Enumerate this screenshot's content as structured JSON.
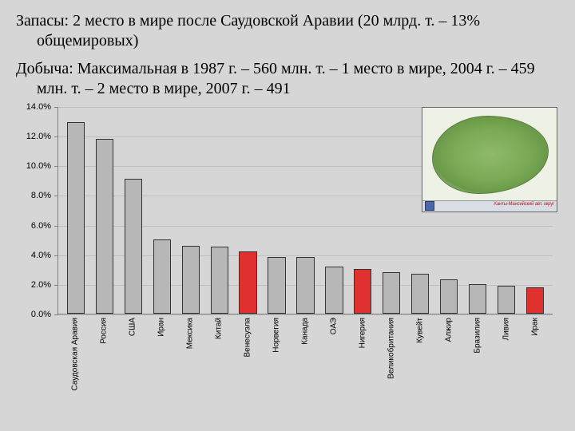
{
  "text": {
    "para1": "Запасы: 2 место в мире после Саудовской Аравии (20 млрд. т. – 13% общемировых)",
    "para2": "Добыча: Максимальная в 1987 г. – 560 млн. т. – 1 место в мире, 2004 г. – 459 млн. т. – 2 место в мире, 2007 г. – 491"
  },
  "chart": {
    "type": "bar",
    "ylim": [
      0,
      14
    ],
    "ytick_step": 2,
    "y_format_suffix": ".0%",
    "label_fontsize": 11,
    "xlabel_fontsize": 10,
    "grid_color": "#bfbfbf",
    "axis_color": "#808080",
    "bar_border": "#333333",
    "colors": {
      "gray": "#b7b7b7",
      "red": "#e03030"
    },
    "categories": [
      {
        "label": "Саудовская Аравия",
        "value": 12.9,
        "color": "gray"
      },
      {
        "label": "Россия",
        "value": 11.8,
        "color": "gray"
      },
      {
        "label": "США",
        "value": 9.1,
        "color": "gray"
      },
      {
        "label": "Иран",
        "value": 5.0,
        "color": "gray"
      },
      {
        "label": "Мексика",
        "value": 4.6,
        "color": "gray"
      },
      {
        "label": "Китай",
        "value": 4.5,
        "color": "gray"
      },
      {
        "label": "Венесуэла",
        "value": 4.2,
        "color": "red"
      },
      {
        "label": "Норвегия",
        "value": 3.8,
        "color": "gray"
      },
      {
        "label": "Канада",
        "value": 3.8,
        "color": "gray"
      },
      {
        "label": "ОАЭ",
        "value": 3.2,
        "color": "gray"
      },
      {
        "label": "Нигерия",
        "value": 3.0,
        "color": "red"
      },
      {
        "label": "Великобритания",
        "value": 2.8,
        "color": "gray"
      },
      {
        "label": "Кувейт",
        "value": 2.7,
        "color": "gray"
      },
      {
        "label": "Алжир",
        "value": 2.3,
        "color": "gray"
      },
      {
        "label": "Бразилия",
        "value": 2.0,
        "color": "gray"
      },
      {
        "label": "Ливия",
        "value": 1.9,
        "color": "gray"
      },
      {
        "label": "Ирак",
        "value": 1.8,
        "color": "red"
      }
    ]
  },
  "map": {
    "footer_text": "Ханты-Мансийский авт. округ"
  }
}
